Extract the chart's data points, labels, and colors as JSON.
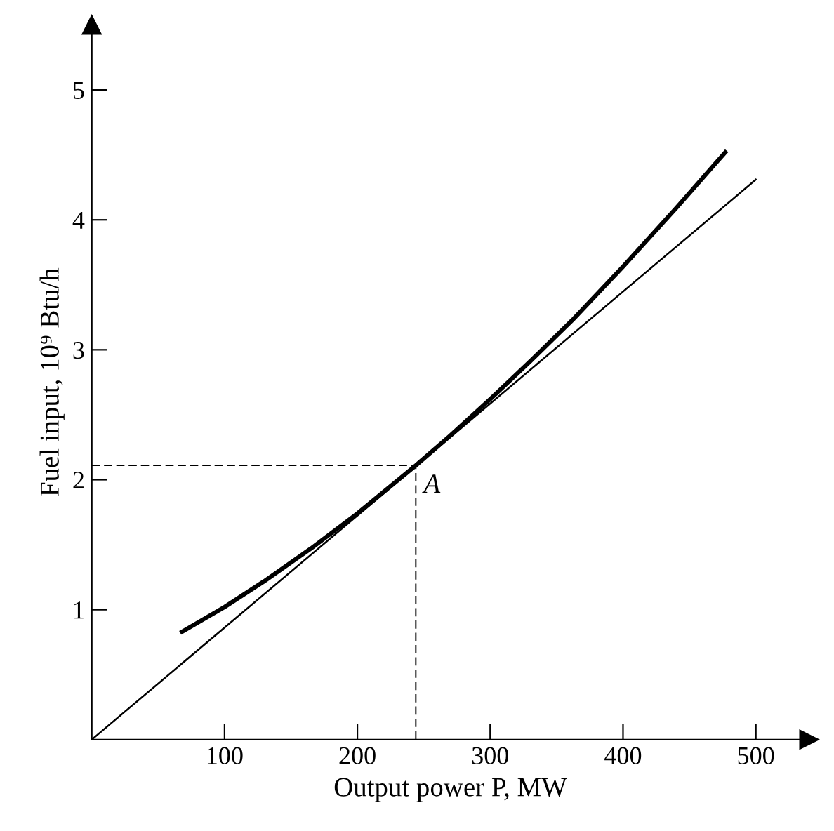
{
  "chart_data": {
    "type": "line",
    "xlabel": "Output power P, MW",
    "ylabel": "Fuel input, 10⁹ Btu/h",
    "xlim": [
      0,
      540
    ],
    "ylim": [
      0,
      5.5
    ],
    "xticks": [
      100,
      200,
      300,
      400,
      500
    ],
    "yticks": [
      1,
      2,
      3,
      4,
      5
    ],
    "grid": false,
    "legend": false,
    "marker": "none",
    "series": [
      {
        "color": "#000000",
        "line_style": "solid",
        "x": [
          68,
          100,
          130,
          165,
          200,
          244,
          270,
          300,
          330,
          362,
          400,
          440,
          477
        ],
        "values": [
          0.83,
          1.02,
          1.22,
          1.47,
          1.74,
          2.11,
          2.34,
          2.62,
          2.91,
          3.23,
          3.64,
          4.09,
          4.52
        ]
      },
      {
        "color": "#000000",
        "line_style": "solid",
        "x": [
          0,
          500
        ],
        "values": [
          0,
          4.31
        ]
      },
      {
        "color": "#000000",
        "line_style": "dashed",
        "x": [
          0,
          244,
          244
        ],
        "values": [
          2.11,
          2.11,
          0
        ]
      }
    ],
    "annotations": [
      {
        "text": "A",
        "x": 244,
        "y": 2.11
      }
    ]
  }
}
